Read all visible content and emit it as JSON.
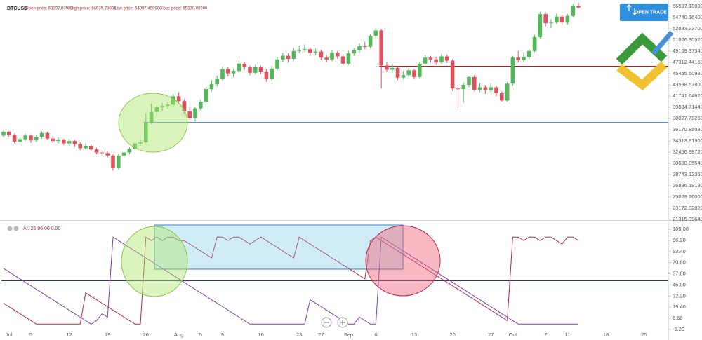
{
  "chart_data": [
    {
      "type": "candlestick",
      "symbol": "BTCUSD",
      "open_label": "Open price: 63997.87000",
      "high_label": "High price: 66639.73000",
      "low_label": "Low price: 64097.45000",
      "close_label": "Close price: 65330.00000",
      "up_color": "#53b85a",
      "down_color": "#e0515d",
      "categories": [
        null,
        "Jul",
        null,
        null,
        null,
        "5",
        null,
        null,
        null,
        null,
        null,
        null,
        "12",
        null,
        null,
        null,
        null,
        null,
        null,
        "19",
        null,
        null,
        null,
        null,
        null,
        null,
        "26",
        null,
        null,
        null,
        null,
        null,
        "Aug",
        null,
        null,
        null,
        "5",
        null,
        null,
        null,
        "9",
        null,
        null,
        null,
        null,
        null,
        null,
        "16",
        null,
        null,
        null,
        null,
        null,
        null,
        "23",
        null,
        null,
        null,
        "27",
        null,
        null,
        null,
        null,
        "Sep",
        null,
        null,
        null,
        null,
        "6",
        null,
        null,
        null,
        null,
        null,
        null,
        "13",
        null,
        null,
        null,
        null,
        null,
        null,
        "20",
        null,
        null,
        null,
        null,
        null,
        null,
        "27",
        null,
        null,
        null,
        "Oct",
        null,
        null,
        null,
        null,
        null,
        "7",
        null,
        null,
        null,
        "11",
        null,
        null,
        null,
        null,
        null,
        null,
        "18",
        null,
        null,
        null,
        null,
        null,
        null,
        "25",
        null,
        null
      ],
      "values": [
        [
          35200,
          36100,
          34900,
          35800
        ],
        [
          35800,
          36000,
          35000,
          35300
        ],
        [
          35300,
          35500,
          33900,
          34200
        ],
        [
          34200,
          34900,
          33800,
          34600
        ],
        [
          34600,
          35500,
          34300,
          35200
        ],
        [
          35200,
          35400,
          34000,
          34400
        ],
        [
          34400,
          35300,
          34100,
          35000
        ],
        [
          35000,
          35900,
          34700,
          35600
        ],
        [
          35600,
          35800,
          34500,
          34700
        ],
        [
          34700,
          35100,
          34000,
          34300
        ],
        [
          34300,
          34900,
          33900,
          34500
        ],
        [
          34500,
          34700,
          33600,
          33900
        ],
        [
          33900,
          34600,
          33500,
          34300
        ],
        [
          34300,
          34500,
          33400,
          33800
        ],
        [
          33800,
          34100,
          32800,
          33100
        ],
        [
          33100,
          33900,
          32900,
          33500
        ],
        [
          33500,
          33700,
          32600,
          32900
        ],
        [
          32900,
          33200,
          32100,
          32400
        ],
        [
          32400,
          32800,
          31800,
          32300
        ],
        [
          32300,
          32500,
          31500,
          31900
        ],
        [
          31900,
          32100,
          29400,
          29800
        ],
        [
          29800,
          32200,
          29600,
          31900
        ],
        [
          31900,
          32700,
          31600,
          32400
        ],
        [
          32400,
          33300,
          32100,
          33000
        ],
        [
          33000,
          34200,
          32800,
          33900
        ],
        [
          33900,
          34500,
          33500,
          34100
        ],
        [
          34100,
          38900,
          33900,
          37300
        ],
        [
          37300,
          40500,
          37100,
          39100
        ],
        [
          39100,
          40200,
          38400,
          39900
        ],
        [
          39900,
          40600,
          39300,
          40100
        ],
        [
          40100,
          40800,
          39600,
          40300
        ],
        [
          40300,
          42100,
          40000,
          41700
        ],
        [
          41700,
          42400,
          40500,
          40900
        ],
        [
          40900,
          41200,
          38800,
          39200
        ],
        [
          39200,
          39900,
          37800,
          38100
        ],
        [
          38100,
          40000,
          37500,
          39700
        ],
        [
          39700,
          41200,
          39400,
          40800
        ],
        [
          40800,
          43300,
          40600,
          42900
        ],
        [
          42900,
          44400,
          42500,
          43700
        ],
        [
          43700,
          45100,
          43300,
          44600
        ],
        [
          44600,
          46600,
          44300,
          46200
        ],
        [
          46200,
          46500,
          45000,
          45500
        ],
        [
          45500,
          46300,
          44900,
          45900
        ],
        [
          45900,
          47600,
          45600,
          47100
        ],
        [
          47100,
          47400,
          46100,
          46500
        ],
        [
          46500,
          46800,
          45200,
          45600
        ],
        [
          45600,
          46900,
          45300,
          46500
        ],
        [
          46500,
          46800,
          45400,
          45800
        ],
        [
          45800,
          46200,
          44100,
          44600
        ],
        [
          44600,
          46700,
          44300,
          46300
        ],
        [
          46300,
          48200,
          46000,
          47800
        ],
        [
          47800,
          48900,
          47400,
          48400
        ],
        [
          48400,
          48800,
          47300,
          47900
        ],
        [
          47900,
          49600,
          47600,
          49200
        ],
        [
          49200,
          50100,
          48800,
          49400
        ],
        [
          49400,
          50300,
          49000,
          49500
        ],
        [
          49500,
          49800,
          48400,
          48900
        ],
        [
          48900,
          49600,
          48500,
          49100
        ],
        [
          49100,
          49400,
          47700,
          48100
        ],
        [
          48100,
          48500,
          47300,
          47800
        ],
        [
          47800,
          49300,
          47500,
          48900
        ],
        [
          48900,
          49200,
          47900,
          48300
        ],
        [
          48300,
          48700,
          46800,
          47100
        ],
        [
          47100,
          49200,
          46900,
          48800
        ],
        [
          48800,
          49700,
          48400,
          49300
        ],
        [
          49300,
          50400,
          48900,
          50000
        ],
        [
          50000,
          50700,
          49500,
          49900
        ],
        [
          49900,
          52000,
          49600,
          51700
        ],
        [
          51700,
          53000,
          51300,
          52600
        ],
        [
          52600,
          52800,
          43000,
          46800
        ],
        [
          46800,
          47300,
          45800,
          46100
        ],
        [
          46100,
          47000,
          45600,
          46400
        ],
        [
          46400,
          46700,
          44400,
          44800
        ],
        [
          44800,
          45900,
          44500,
          45200
        ],
        [
          45200,
          46400,
          44900,
          46000
        ],
        [
          46000,
          46200,
          44600,
          44900
        ],
        [
          44900,
          47400,
          44700,
          47100
        ],
        [
          47100,
          48500,
          46800,
          48100
        ],
        [
          48100,
          48400,
          47300,
          47800
        ],
        [
          47800,
          48200,
          46900,
          47300
        ],
        [
          47300,
          48700,
          47000,
          48300
        ],
        [
          48300,
          48600,
          47200,
          47600
        ],
        [
          47600,
          47800,
          42600,
          43000
        ],
        [
          43000,
          43600,
          39900,
          42900
        ],
        [
          42900,
          44000,
          40600,
          43600
        ],
        [
          43600,
          45000,
          43200,
          44900
        ],
        [
          44900,
          45200,
          42500,
          42800
        ],
        [
          42800,
          43900,
          42400,
          43200
        ],
        [
          43200,
          43600,
          42100,
          42700
        ],
        [
          42700,
          43800,
          42400,
          43200
        ],
        [
          43200,
          43500,
          41700,
          42200
        ],
        [
          42200,
          42500,
          40800,
          41000
        ],
        [
          41000,
          44100,
          40800,
          43800
        ],
        [
          43800,
          48400,
          43500,
          48100
        ],
        [
          48100,
          49200,
          47300,
          47700
        ],
        [
          47700,
          49000,
          47400,
          48200
        ],
        [
          48200,
          49500,
          47800,
          49200
        ],
        [
          49200,
          51900,
          49000,
          51500
        ],
        [
          51500,
          55700,
          51200,
          55300
        ],
        [
          55300,
          55600,
          53300,
          53800
        ],
        [
          53800,
          54500,
          53000,
          53900
        ],
        [
          53900,
          55400,
          53700,
          54900
        ],
        [
          54900,
          55200,
          53500,
          53900
        ],
        [
          53900,
          55300,
          53600,
          55000
        ],
        [
          55000,
          57000,
          54800,
          56700
        ],
        [
          56700,
          57200,
          56200,
          56400
        ],
        null,
        null,
        null,
        null,
        null,
        null,
        null,
        null,
        null,
        null,
        null,
        null,
        null,
        null
      ],
      "ylim": [
        21315.4,
        57641.6
      ],
      "yticks": [
        {
          "value": 56597.1,
          "label": "56597.10000"
        },
        {
          "value": 54740.164,
          "label": "54740.16400"
        },
        {
          "value": 52883.237,
          "label": "52883.23700"
        },
        {
          "value": 51026.3052,
          "label": "51026.30520"
        },
        {
          "value": 49169.3734,
          "label": "49169.37340"
        },
        {
          "value": 47312.4416,
          "label": "47312.44160"
        },
        {
          "value": 45455.5098,
          "label": "45455.50980"
        },
        {
          "value": 43598.578,
          "label": "43598.57800"
        },
        {
          "value": 41741.6462,
          "label": "41741.64620"
        },
        {
          "value": 39884.7144,
          "label": "39884.71440"
        },
        {
          "value": 38027.7826,
          "label": "38027.78260"
        },
        {
          "value": 36170.8508,
          "label": "36170.85080"
        },
        {
          "value": 34313.919,
          "label": "34313.91900"
        },
        {
          "value": 32456.9872,
          "label": "32456.98720"
        },
        {
          "value": 30600.0554,
          "label": "30600.05540"
        },
        {
          "value": 28743.1236,
          "label": "28743.12360"
        },
        {
          "value": 26886.1918,
          "label": "26886.19180"
        },
        {
          "value": 25029.26,
          "label": "25029.26000"
        },
        {
          "value": 23172.3282,
          "label": "23172.32820"
        },
        {
          "value": 21315.3964,
          "label": "21315.39640"
        }
      ],
      "hlines": [
        {
          "value": 37350,
          "start": 26,
          "color": "#4a7cc9"
        },
        {
          "value": 46650,
          "start": 69,
          "color": "#b32424"
        }
      ]
    },
    {
      "type": "line",
      "indicator_label": "Ar. 25 96.00 0.00",
      "series": [
        {
          "color": "#b5284e",
          "values": [
            24,
            20,
            16,
            12,
            8,
            4,
            0,
            0,
            0,
            0,
            0,
            0,
            0,
            0,
            0,
            36,
            32,
            28,
            24,
            20,
            16,
            12,
            8,
            4,
            0,
            0,
            100,
            96,
            100,
            96,
            100,
            100,
            96,
            96,
            92,
            88,
            84,
            80,
            76,
            100,
            100,
            96,
            100,
            100,
            96,
            92,
            96,
            100,
            96,
            92,
            88,
            84,
            80,
            76,
            100,
            96,
            92,
            88,
            84,
            80,
            76,
            72,
            68,
            64,
            60,
            56,
            52,
            96,
            100,
            96,
            92,
            88,
            84,
            80,
            76,
            72,
            68,
            64,
            60,
            56,
            52,
            48,
            44,
            40,
            36,
            32,
            28,
            24,
            20,
            16,
            12,
            8,
            4,
            100,
            100,
            96,
            100,
            100,
            96,
            100,
            100,
            96,
            92,
            100,
            100,
            96,
            null,
            null,
            null,
            null,
            null,
            null,
            null,
            null,
            null,
            null,
            null,
            null,
            null,
            null
          ]
        },
        {
          "color": "#7d3fa8",
          "values": [
            64,
            60,
            56,
            52,
            48,
            44,
            40,
            36,
            32,
            28,
            24,
            20,
            16,
            12,
            8,
            4,
            0,
            4,
            12,
            8,
            100,
            96,
            92,
            88,
            84,
            80,
            76,
            72,
            68,
            64,
            60,
            56,
            52,
            48,
            44,
            40,
            36,
            32,
            28,
            24,
            20,
            16,
            12,
            8,
            4,
            0,
            0,
            0,
            0,
            0,
            0,
            0,
            0,
            0,
            0,
            0,
            28,
            24,
            20,
            16,
            12,
            8,
            4,
            0,
            0,
            8,
            4,
            0,
            0,
            100,
            96,
            92,
            88,
            84,
            80,
            76,
            72,
            68,
            64,
            60,
            56,
            52,
            48,
            44,
            40,
            36,
            32,
            28,
            24,
            20,
            16,
            12,
            8,
            4,
            0,
            0,
            0,
            0,
            0,
            0,
            0,
            0,
            0,
            0,
            0,
            0,
            null,
            null,
            null,
            null,
            null,
            null,
            null,
            null,
            null,
            null,
            null,
            null,
            null,
            null
          ]
        }
      ],
      "ylim": [
        -6.2,
        116.3
      ],
      "yticks": [
        {
          "value": 109,
          "label": "109.00"
        },
        {
          "value": 96.2,
          "label": "96.20"
        },
        {
          "value": 83.4,
          "label": "83.40"
        },
        {
          "value": 70.6,
          "label": "70.60"
        },
        {
          "value": 57.8,
          "label": "57.80"
        },
        {
          "value": 45,
          "label": "45.00"
        },
        {
          "value": 32.2,
          "label": "32.20"
        },
        {
          "value": 19.4,
          "label": "19.40"
        },
        {
          "value": 6.6,
          "label": "6.60"
        },
        {
          "value": -6.2,
          "label": "-6.20"
        }
      ],
      "hlines": [
        {
          "value": 50,
          "start": 0,
          "color": "#2c3a66"
        }
      ]
    }
  ],
  "button_text": "OPEN TRADE"
}
